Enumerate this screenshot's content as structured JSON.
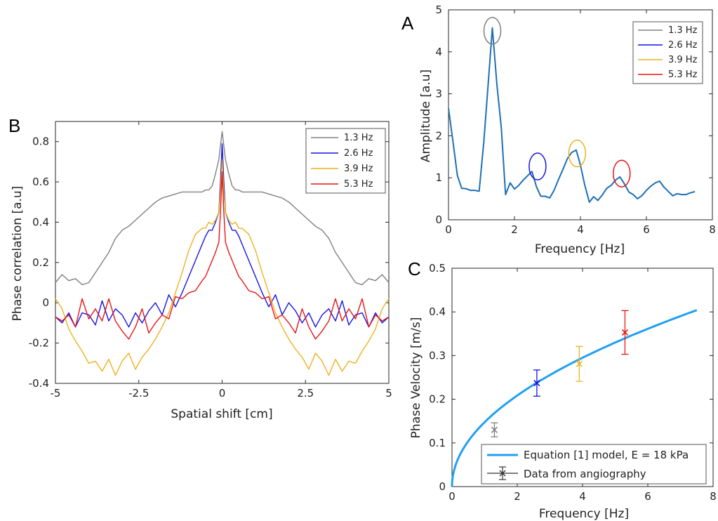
{
  "colors": {
    "gray": "#808080",
    "blue": "#1414e6",
    "orange": "#edb120",
    "red": "#e61414",
    "spectrum": "#1f6fb5",
    "model": "#21a0f0"
  },
  "chart_data": [
    {
      "panel": "A",
      "type": "line",
      "xlabel": "Frequency [Hz]",
      "ylabel": "Amplitude [a.u]",
      "xlim": [
        0,
        8
      ],
      "ylim": [
        0,
        5
      ],
      "xticks": [
        "0",
        "2",
        "4",
        "6",
        "8"
      ],
      "yticks": [
        "0",
        "1",
        "2",
        "3",
        "4",
        "5"
      ],
      "series": [
        {
          "x": [
            0,
            0.13,
            0.27,
            0.4,
            0.53,
            0.67,
            0.8,
            0.93,
            1.07,
            1.2,
            1.33,
            1.47,
            1.6,
            1.73,
            1.87,
            2.0,
            2.13,
            2.27,
            2.4,
            2.53,
            2.67,
            2.8,
            2.93,
            3.07,
            3.2,
            3.33,
            3.47,
            3.6,
            3.73,
            3.87,
            3.93,
            4.0,
            4.13,
            4.27,
            4.4,
            4.53,
            4.67,
            4.8,
            4.93,
            5.07,
            5.2,
            5.33,
            5.47,
            5.6,
            5.73,
            5.87,
            6.0,
            6.13,
            6.27,
            6.4,
            6.53,
            6.67,
            6.8,
            6.93,
            7.07,
            7.2,
            7.33,
            7.47
          ],
          "y": [
            2.65,
            1.9,
            1.05,
            0.75,
            0.74,
            0.7,
            0.7,
            0.68,
            1.85,
            3.2,
            4.57,
            3.2,
            2.2,
            0.6,
            0.88,
            0.73,
            0.82,
            0.95,
            1.05,
            1.15,
            0.78,
            0.56,
            0.56,
            0.52,
            0.7,
            0.95,
            1.2,
            1.45,
            1.6,
            1.66,
            1.5,
            1.3,
            0.83,
            0.42,
            0.55,
            0.46,
            0.6,
            0.75,
            0.82,
            0.95,
            1.02,
            0.86,
            0.66,
            0.6,
            0.5,
            0.58,
            0.7,
            0.8,
            0.88,
            0.92,
            0.78,
            0.67,
            0.57,
            0.62,
            0.6,
            0.6,
            0.64,
            0.67
          ]
        }
      ],
      "highlights": [
        {
          "name": "1.3 Hz",
          "x": 1.33,
          "y": 4.5,
          "color": "gray"
        },
        {
          "name": "2.6 Hz",
          "x": 2.7,
          "y": 1.27,
          "color": "blue"
        },
        {
          "name": "3.9 Hz",
          "x": 3.9,
          "y": 1.58,
          "color": "orange"
        },
        {
          "name": "5.3 Hz",
          "x": 5.25,
          "y": 1.1,
          "color": "red"
        }
      ],
      "legend": [
        "1.3 Hz",
        "2.6 Hz",
        "3.9 Hz",
        "5.3 Hz"
      ],
      "legend_position": "top-right"
    },
    {
      "panel": "B",
      "type": "line",
      "xlabel": "Spatial shift [cm]",
      "ylabel": "Phase correlation [a.u]",
      "xlim": [
        -5,
        5
      ],
      "ylim": [
        -0.4,
        0.9
      ],
      "xticks": [
        "-5",
        "-2.5",
        "0",
        "2.5",
        "5"
      ],
      "yticks": [
        "-0.4",
        "-0.2",
        "0",
        "0.2",
        "0.4",
        "0.6",
        "0.8"
      ],
      "x_half": [
        0,
        0.05,
        0.1,
        0.2,
        0.3,
        0.4,
        0.5,
        0.6,
        0.8,
        1.0,
        1.2,
        1.4,
        1.6,
        1.8,
        2.0,
        2.2,
        2.4,
        2.6,
        2.8,
        3.0,
        3.2,
        3.4,
        3.6,
        3.8,
        4.0,
        4.2,
        4.4,
        4.6,
        4.8,
        5.0
      ],
      "series": [
        {
          "name": "1.3 Hz",
          "color": "gray",
          "values": [
            0.85,
            0.78,
            0.71,
            0.64,
            0.58,
            0.56,
            0.56,
            0.55,
            0.55,
            0.55,
            0.55,
            0.54,
            0.53,
            0.52,
            0.5,
            0.47,
            0.44,
            0.41,
            0.38,
            0.36,
            0.32,
            0.25,
            0.2,
            0.15,
            0.1,
            0.09,
            0.12,
            0.11,
            0.14,
            0.1
          ]
        },
        {
          "name": "2.6 Hz",
          "color": "blue",
          "values": [
            0.79,
            0.6,
            0.45,
            0.4,
            0.36,
            0.36,
            0.33,
            0.29,
            0.21,
            0.13,
            0.05,
            -0.02,
            0.04,
            -0.06,
            0.0,
            -0.04,
            -0.1,
            -0.05,
            -0.12,
            -0.06,
            -0.03,
            -0.09,
            0.01,
            -0.11,
            -0.06,
            -0.05,
            -0.12,
            -0.05,
            -0.1,
            -0.07
          ]
        },
        {
          "name": "3.9 Hz",
          "color": "orange",
          "values": [
            0.71,
            0.55,
            0.45,
            0.41,
            0.39,
            0.4,
            0.37,
            0.37,
            0.34,
            0.26,
            0.15,
            0.05,
            -0.05,
            -0.12,
            -0.18,
            -0.23,
            -0.27,
            -0.33,
            -0.25,
            -0.29,
            -0.36,
            -0.28,
            -0.34,
            -0.29,
            -0.3,
            -0.24,
            -0.19,
            -0.13,
            -0.03,
            0.02
          ]
        },
        {
          "name": "5.3 Hz",
          "color": "red",
          "values": [
            0.65,
            0.45,
            0.3,
            0.25,
            0.21,
            0.17,
            0.13,
            0.11,
            0.06,
            0.05,
            0.02,
            0.03,
            -0.08,
            -0.06,
            -0.1,
            -0.15,
            -0.03,
            -0.12,
            -0.18,
            -0.14,
            -0.09,
            0.02,
            -0.09,
            -0.03,
            -0.08,
            0.02,
            -0.12,
            -0.06,
            -0.09,
            -0.07
          ]
        }
      ],
      "legend": [
        "1.3 Hz",
        "2.6 Hz",
        "3.9 Hz",
        "5.3 Hz"
      ],
      "legend_position": "top-right"
    },
    {
      "panel": "C",
      "type": "line",
      "xlabel": "Frequency [Hz]",
      "ylabel": "Phase Velocity [m/s]",
      "xlim": [
        0,
        8
      ],
      "ylim": [
        0,
        0.5
      ],
      "xticks": [
        "0",
        "2",
        "4",
        "6",
        "8"
      ],
      "yticks": [
        "0",
        "0.1",
        "0.2",
        "0.3",
        "0.4",
        "0.5"
      ],
      "model": {
        "name": "Equation [1] model, E = 18 kPa",
        "x_max": 7.5,
        "coef": 0.1475,
        "exponent": 0.5
      },
      "points": [
        {
          "name": "1.3 Hz",
          "x": 1.3,
          "y": 0.13,
          "err": 0.016,
          "color": "gray"
        },
        {
          "name": "2.6 Hz",
          "x": 2.6,
          "y": 0.237,
          "err": 0.03,
          "color": "blue"
        },
        {
          "name": "3.9 Hz",
          "x": 3.9,
          "y": 0.281,
          "err": 0.04,
          "color": "orange"
        },
        {
          "name": "5.3 Hz",
          "x": 5.3,
          "y": 0.353,
          "err": 0.05,
          "color": "red"
        }
      ],
      "legend": [
        "Equation [1] model, E = 18 kPa",
        "Data from angiography"
      ],
      "legend_position": "bottom-right"
    }
  ]
}
